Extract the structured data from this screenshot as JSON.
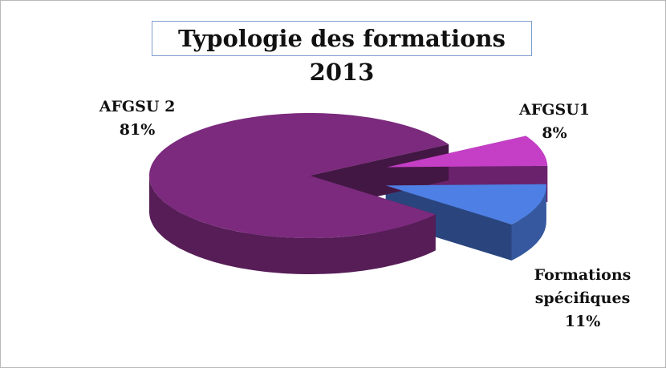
{
  "chart_data": {
    "type": "pie3d",
    "title": "Typologie des formations 2013",
    "categories": [
      "AFGSU1",
      "Formations spécifiques",
      "AFGSU 2"
    ],
    "values": [
      8,
      11,
      81
    ],
    "value_labels": [
      "8%",
      "11%",
      "81%"
    ],
    "colors": [
      "#c43ec6",
      "#4e7fe4",
      "#7b2a7d"
    ]
  }
}
